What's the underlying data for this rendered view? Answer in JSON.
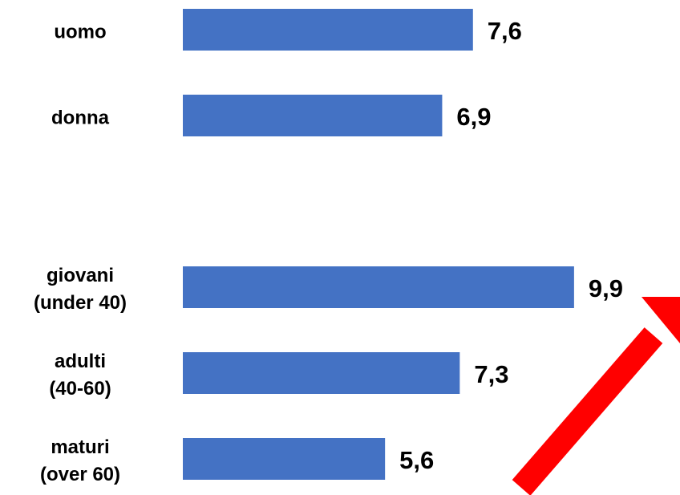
{
  "chart_data": {
    "type": "bar",
    "orientation": "horizontal",
    "categories": [
      "uomo",
      "donna",
      null,
      "giovani\n(under 40)",
      "adulti\n(40-60)",
      "maturi\n(over 60)"
    ],
    "values": [
      7.6,
      6.9,
      null,
      9.9,
      7.3,
      5.6
    ],
    "value_labels": [
      "7,6",
      "6,9",
      null,
      "9,9",
      "7,3",
      "5,6"
    ],
    "color": "#4472c4",
    "xlim": [
      1,
      12
    ]
  }
}
